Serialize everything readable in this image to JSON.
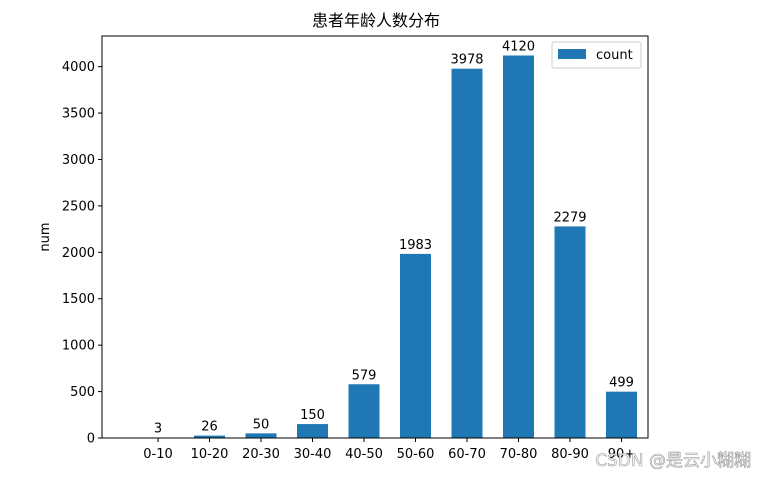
{
  "chart_data": {
    "type": "bar",
    "title": "患者年龄人数分布",
    "xlabel": "",
    "ylabel": "num",
    "categories": [
      "0-10",
      "10-20",
      "20-30",
      "30-40",
      "40-50",
      "50-60",
      "60-70",
      "70-80",
      "80-90",
      "90+"
    ],
    "series": [
      {
        "name": "count",
        "values": [
          3,
          26,
          50,
          150,
          579,
          1983,
          3978,
          4120,
          2279,
          499
        ],
        "color": "#1f77b4"
      }
    ],
    "ylim": [
      0,
      4330
    ],
    "yticks": [
      0,
      500,
      1000,
      1500,
      2000,
      2500,
      3000,
      3500,
      4000
    ],
    "grid": false,
    "legend_position": "top-right",
    "data_labels": true
  },
  "watermark": "CSDN @是云小糊糊"
}
